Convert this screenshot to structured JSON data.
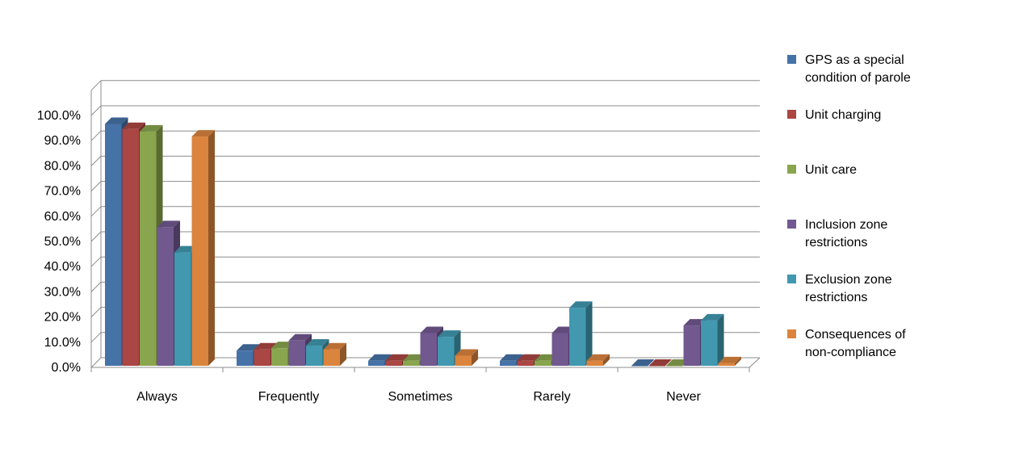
{
  "chart_data": {
    "type": "bar",
    "style": "3d-clustered-column",
    "categories": [
      "Always",
      "Frequently",
      "Sometimes",
      "Rarely",
      "Never"
    ],
    "series": [
      {
        "name": "GPS as a special condition of parole",
        "color": "#4572A7",
        "values": [
          96.0,
          6.0,
          2.0,
          2.0,
          0.0
        ]
      },
      {
        "name": "Unit charging",
        "color": "#AA4643",
        "values": [
          94.0,
          6.5,
          2.0,
          2.0,
          0.0
        ]
      },
      {
        "name": "Unit care",
        "color": "#89A54E",
        "values": [
          93.0,
          7.0,
          2.0,
          2.0,
          0.0
        ]
      },
      {
        "name": "Inclusion zone restrictions",
        "color": "#71588F",
        "values": [
          55.0,
          10.0,
          13.0,
          13.0,
          16.0
        ]
      },
      {
        "name": "Exclusion zone restrictions",
        "color": "#4198AF",
        "values": [
          45.0,
          8.0,
          11.5,
          23.0,
          18.0
        ]
      },
      {
        "name": "Consequences of non-compliance",
        "color": "#DB843D",
        "values": [
          91.0,
          6.5,
          4.0,
          2.0,
          1.0
        ]
      }
    ],
    "yaxis": {
      "min": 0,
      "max": 100,
      "step": 10,
      "tick_labels": [
        "0.0%",
        "10.0%",
        "20.0%",
        "30.0%",
        "40.0%",
        "50.0%",
        "60.0%",
        "70.0%",
        "80.0%",
        "90.0%",
        "100.0%"
      ]
    },
    "grid": true,
    "legend": "right",
    "title": "",
    "xlabel": "",
    "ylabel": ""
  }
}
